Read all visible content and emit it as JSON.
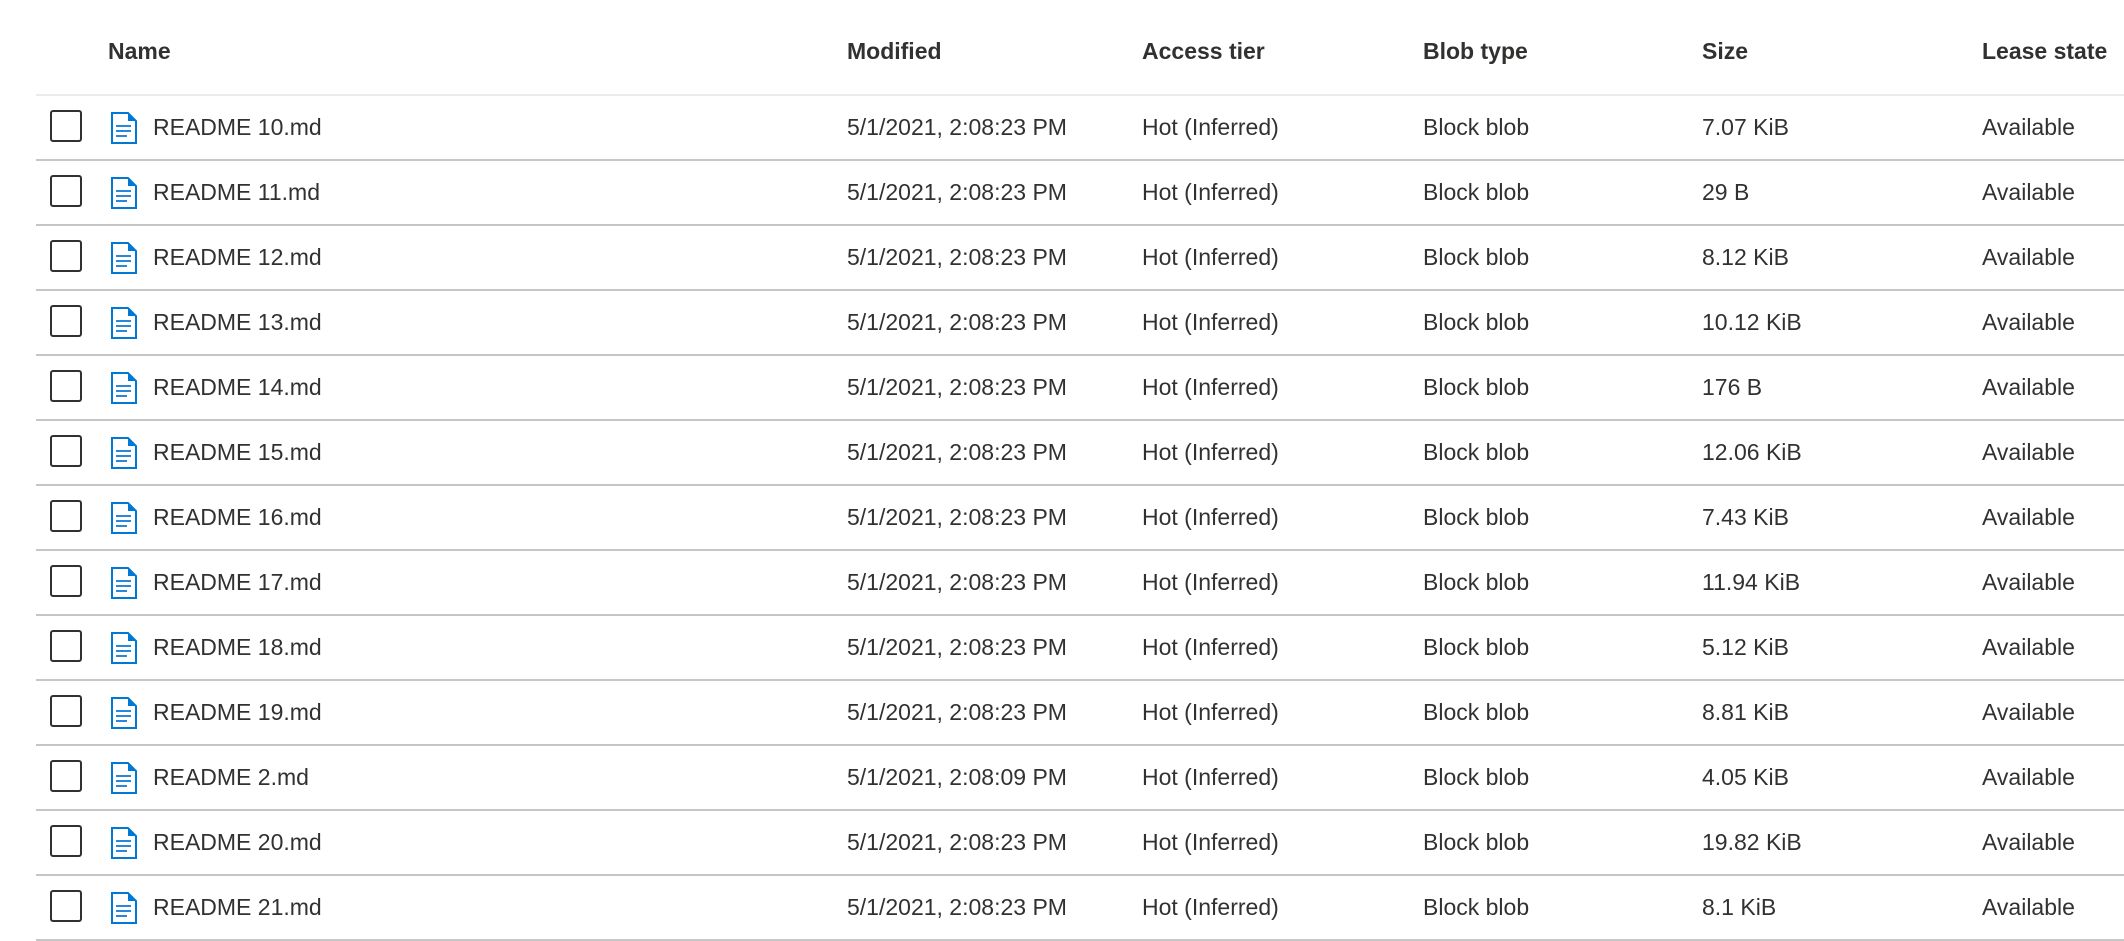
{
  "columns": {
    "name": "Name",
    "modified": "Modified",
    "access_tier": "Access tier",
    "blob_type": "Blob type",
    "size": "Size",
    "lease_state": "Lease state"
  },
  "icon": "markdown-file-icon",
  "accent": "#0078d4",
  "rows": [
    {
      "name": "README 10.md",
      "modified": "5/1/2021, 2:08:23 PM",
      "tier": "Hot (Inferred)",
      "type": "Block blob",
      "size": "7.07 KiB",
      "lease": "Available"
    },
    {
      "name": "README 11.md",
      "modified": "5/1/2021, 2:08:23 PM",
      "tier": "Hot (Inferred)",
      "type": "Block blob",
      "size": "29 B",
      "lease": "Available"
    },
    {
      "name": "README 12.md",
      "modified": "5/1/2021, 2:08:23 PM",
      "tier": "Hot (Inferred)",
      "type": "Block blob",
      "size": "8.12 KiB",
      "lease": "Available"
    },
    {
      "name": "README 13.md",
      "modified": "5/1/2021, 2:08:23 PM",
      "tier": "Hot (Inferred)",
      "type": "Block blob",
      "size": "10.12 KiB",
      "lease": "Available"
    },
    {
      "name": "README 14.md",
      "modified": "5/1/2021, 2:08:23 PM",
      "tier": "Hot (Inferred)",
      "type": "Block blob",
      "size": "176 B",
      "lease": "Available"
    },
    {
      "name": "README 15.md",
      "modified": "5/1/2021, 2:08:23 PM",
      "tier": "Hot (Inferred)",
      "type": "Block blob",
      "size": "12.06 KiB",
      "lease": "Available"
    },
    {
      "name": "README 16.md",
      "modified": "5/1/2021, 2:08:23 PM",
      "tier": "Hot (Inferred)",
      "type": "Block blob",
      "size": "7.43 KiB",
      "lease": "Available"
    },
    {
      "name": "README 17.md",
      "modified": "5/1/2021, 2:08:23 PM",
      "tier": "Hot (Inferred)",
      "type": "Block blob",
      "size": "11.94 KiB",
      "lease": "Available"
    },
    {
      "name": "README 18.md",
      "modified": "5/1/2021, 2:08:23 PM",
      "tier": "Hot (Inferred)",
      "type": "Block blob",
      "size": "5.12 KiB",
      "lease": "Available"
    },
    {
      "name": "README 19.md",
      "modified": "5/1/2021, 2:08:23 PM",
      "tier": "Hot (Inferred)",
      "type": "Block blob",
      "size": "8.81 KiB",
      "lease": "Available"
    },
    {
      "name": "README 2.md",
      "modified": "5/1/2021, 2:08:09 PM",
      "tier": "Hot (Inferred)",
      "type": "Block blob",
      "size": "4.05 KiB",
      "lease": "Available"
    },
    {
      "name": "README 20.md",
      "modified": "5/1/2021, 2:08:23 PM",
      "tier": "Hot (Inferred)",
      "type": "Block blob",
      "size": "19.82 KiB",
      "lease": "Available"
    },
    {
      "name": "README 21.md",
      "modified": "5/1/2021, 2:08:23 PM",
      "tier": "Hot (Inferred)",
      "type": "Block blob",
      "size": "8.1 KiB",
      "lease": "Available"
    }
  ]
}
